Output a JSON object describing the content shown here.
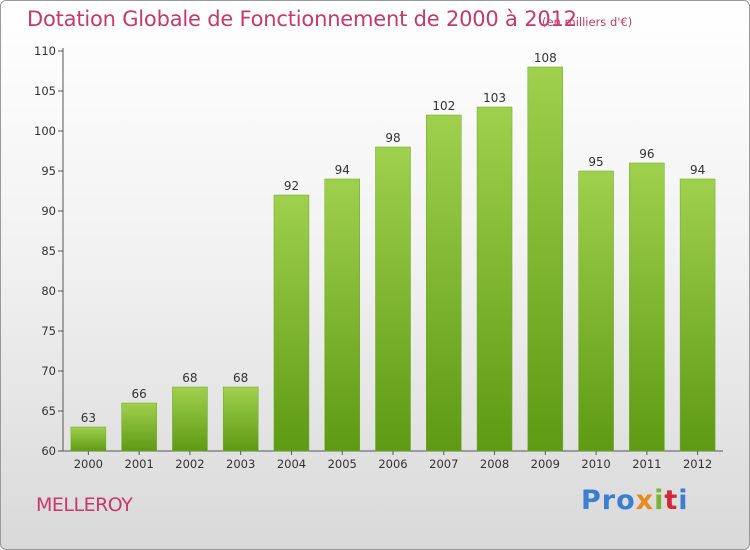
{
  "header": {
    "title": "Dotation Globale de Fonctionnement de 2000 à 2012",
    "unit": "(en milliers d'€)"
  },
  "footer": {
    "commune": "MELLEROY",
    "logo_text": "Proxiti"
  },
  "colors": {
    "title": "#c8386c",
    "bar_top": "#9fd04e",
    "bar_bottom": "#5e9a14",
    "axis": "#555555"
  },
  "chart_data": {
    "type": "bar",
    "title": "Dotation Globale de Fonctionnement de 2000 à 2012",
    "subtitle": "(en milliers d'€)",
    "xlabel": "",
    "ylabel": "",
    "categories": [
      "2000",
      "2001",
      "2002",
      "2003",
      "2004",
      "2005",
      "2006",
      "2007",
      "2008",
      "2009",
      "2010",
      "2011",
      "2012"
    ],
    "values": [
      63,
      66,
      68,
      68,
      92,
      94,
      98,
      102,
      103,
      108,
      95,
      96,
      94
    ],
    "ylim": [
      60,
      110
    ],
    "yticks": [
      60,
      65,
      70,
      75,
      80,
      85,
      90,
      95,
      100,
      105,
      110
    ],
    "grid": false,
    "data_labels": true
  }
}
